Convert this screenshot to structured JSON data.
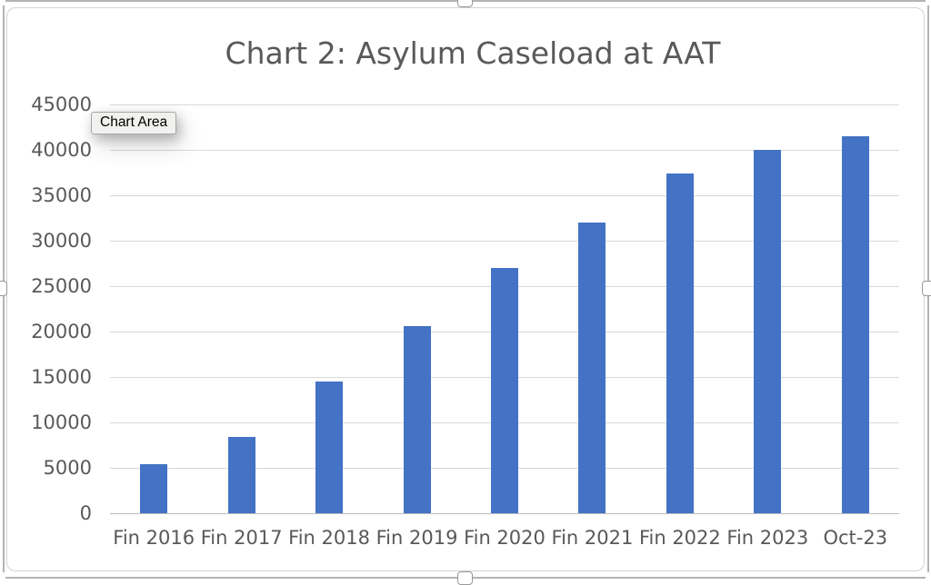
{
  "tooltip": {
    "label": "Chart Area"
  },
  "chart_data": {
    "type": "bar",
    "title": "Chart 2: Asylum Caseload at AAT",
    "categories": [
      "Fin 2016",
      "Fin 2017",
      "Fin 2018",
      "Fin 2019",
      "Fin 2020",
      "Fin 2021",
      "Fin 2022",
      "Fin 2023",
      "Oct-23"
    ],
    "values": [
      5400,
      8400,
      14500,
      20600,
      27000,
      32000,
      37400,
      40000,
      41500
    ],
    "series_name": "Asylum caseload",
    "xlabel": "",
    "ylabel": "",
    "ylim": [
      0,
      45000
    ],
    "yticks": [
      0,
      5000,
      10000,
      15000,
      20000,
      25000,
      30000,
      35000,
      40000,
      45000
    ],
    "grid": true,
    "legend_position": "none",
    "colors": {
      "bar": "#4472C4",
      "title_text": "#595959",
      "tick_text": "#595959",
      "gridline": "#D9D9D9",
      "axis_line": "#BDBDBD"
    }
  }
}
